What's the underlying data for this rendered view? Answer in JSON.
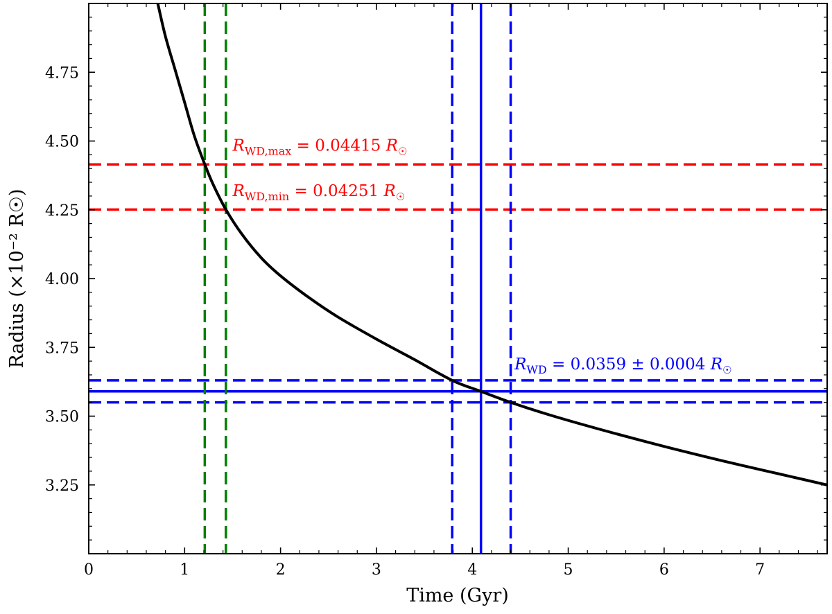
{
  "chart_data": {
    "type": "line",
    "xlabel": "Time (Gyr)",
    "ylabel": "Radius (×10⁻² R☉)",
    "xlim": [
      0,
      7.7
    ],
    "ylim": [
      3.0,
      5.0
    ],
    "xticks": [
      0,
      1,
      2,
      3,
      4,
      5,
      6,
      7
    ],
    "xtick_labels": [
      "0",
      "1",
      "2",
      "3",
      "4",
      "5",
      "6",
      "7"
    ],
    "yticks": [
      3.25,
      3.5,
      3.75,
      4.0,
      4.25,
      4.5,
      4.75
    ],
    "ytick_labels": [
      "3.25",
      "3.50",
      "3.75",
      "4.00",
      "4.25",
      "4.50",
      "4.75"
    ],
    "grid": false,
    "series": [
      {
        "color": "#000000",
        "style": "solid",
        "x": [
          0.72,
          0.8,
          0.9,
          1.0,
          1.1,
          1.21,
          1.3,
          1.43,
          1.6,
          1.8,
          2.0,
          2.3,
          2.6,
          3.0,
          3.4,
          3.79,
          4.09,
          4.4,
          4.8,
          5.3,
          6.0,
          6.7,
          7.2,
          7.7
        ],
        "y": [
          5.0,
          4.88,
          4.76,
          4.64,
          4.52,
          4.415,
          4.34,
          4.251,
          4.16,
          4.075,
          4.01,
          3.93,
          3.86,
          3.78,
          3.705,
          3.63,
          3.59,
          3.55,
          3.505,
          3.455,
          3.39,
          3.33,
          3.29,
          3.25
        ]
      }
    ],
    "hlines": [
      {
        "y": 4.415,
        "color": "#ff0000",
        "style": "dashed"
      },
      {
        "y": 4.251,
        "color": "#ff0000",
        "style": "dashed"
      },
      {
        "y": 3.59,
        "color": "#0000ff",
        "style": "solid"
      },
      {
        "y": 3.63,
        "color": "#0000ff",
        "style": "dashed"
      },
      {
        "y": 3.55,
        "color": "#0000ff",
        "style": "dashed"
      }
    ],
    "vlines": [
      {
        "x": 1.21,
        "color": "#008000",
        "style": "dashed"
      },
      {
        "x": 1.43,
        "color": "#008000",
        "style": "dashed"
      },
      {
        "x": 3.79,
        "color": "#0000ff",
        "style": "dashed"
      },
      {
        "x": 4.09,
        "color": "#0000ff",
        "style": "solid"
      },
      {
        "x": 4.4,
        "color": "#0000ff",
        "style": "dashed"
      }
    ],
    "annotations": [
      {
        "name": "annotation-rwd-max",
        "text": "R",
        "sub": "WD,max",
        "rest": " = 0.04415 R",
        "sym": "☉",
        "color": "#ff0000",
        "x": 1.5,
        "y": 4.465
      },
      {
        "name": "annotation-rwd-min",
        "text": "R",
        "sub": "WD,min",
        "rest": " = 0.04251 R",
        "sym": "☉",
        "color": "#ff0000",
        "x": 1.5,
        "y": 4.3
      },
      {
        "name": "annotation-rwd",
        "text": "R",
        "sub": "WD",
        "rest": " = 0.0359 ± 0.0004 R",
        "sym": "☉",
        "color": "#0000ff",
        "x": 4.44,
        "y": 3.67
      }
    ]
  }
}
